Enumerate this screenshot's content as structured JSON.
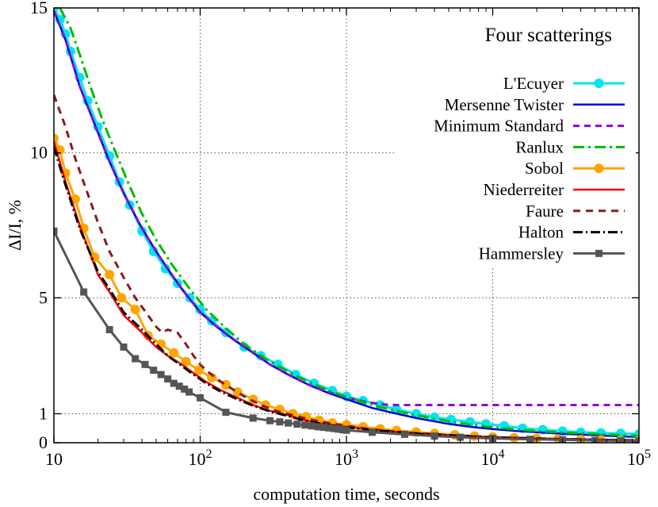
{
  "chart_data": {
    "type": "line",
    "title": "",
    "xlabel": "computation time, seconds",
    "ylabel": "ΔI/I, %",
    "x_scale": "log",
    "xlim": [
      10,
      100000
    ],
    "ylim": [
      0,
      15
    ],
    "x_ticks": [
      {
        "value": 10,
        "base": "10",
        "exp": ""
      },
      {
        "value": 100,
        "base": "10",
        "exp": "2"
      },
      {
        "value": 1000,
        "base": "10",
        "exp": "3"
      },
      {
        "value": 10000,
        "base": "10",
        "exp": "4"
      },
      {
        "value": 100000,
        "base": "10",
        "exp": "5"
      }
    ],
    "y_ticks": [
      0,
      1,
      5,
      10,
      15
    ],
    "grid": true,
    "legend_title": "Four scatterings",
    "legend_position": "top-right",
    "series": [
      {
        "name": "L'Ecuyer",
        "color": "#00e5ee",
        "dash": "",
        "width": 3,
        "marker": "circle",
        "x": [
          10,
          11,
          12,
          13,
          15,
          17,
          20,
          24,
          28,
          33,
          40,
          48,
          58,
          70,
          85,
          100,
          120,
          150,
          200,
          260,
          340,
          450,
          600,
          800,
          1000,
          1300,
          1700,
          2200,
          3000,
          4000,
          5200,
          7000,
          9000,
          12000,
          16000,
          22000,
          30000,
          40000,
          55000,
          75000,
          100000
        ],
        "y": [
          15.0,
          14.6,
          14.1,
          13.5,
          12.6,
          11.8,
          10.9,
          9.9,
          9.0,
          8.2,
          7.3,
          6.6,
          6.0,
          5.5,
          5.0,
          4.6,
          4.2,
          3.8,
          3.3,
          3.0,
          2.7,
          2.35,
          2.05,
          1.8,
          1.6,
          1.45,
          1.3,
          1.15,
          1.0,
          0.88,
          0.8,
          0.72,
          0.65,
          0.58,
          0.5,
          0.45,
          0.4,
          0.36,
          0.34,
          0.32,
          0.3
        ]
      },
      {
        "name": "Mersenne Twister",
        "color": "#0000dd",
        "dash": "",
        "width": 2.5,
        "marker": "",
        "x": [
          10,
          12,
          15,
          20,
          24,
          30,
          40,
          50,
          60,
          75,
          100,
          130,
          170,
          230,
          300,
          400,
          550,
          750,
          1000,
          1500,
          2000,
          3000,
          5000,
          7000,
          10000,
          15000,
          20000,
          30000,
          50000,
          75000,
          100000
        ],
        "y": [
          14.9,
          13.9,
          12.3,
          10.7,
          9.7,
          8.6,
          7.4,
          6.6,
          6.0,
          5.3,
          4.5,
          4.0,
          3.55,
          3.1,
          2.7,
          2.35,
          2.0,
          1.72,
          1.5,
          1.2,
          1.05,
          0.85,
          0.65,
          0.55,
          0.47,
          0.4,
          0.36,
          0.31,
          0.26,
          0.22,
          0.2
        ]
      },
      {
        "name": "Minimum Standard",
        "color": "#9400d3",
        "dash": "8 6",
        "width": 3,
        "marker": "",
        "x": [
          10,
          12,
          15,
          20,
          24,
          30,
          40,
          50,
          60,
          75,
          100,
          130,
          170,
          230,
          300,
          400,
          550,
          750,
          1000,
          1400,
          1800,
          2200,
          3000,
          5000,
          10000,
          20000,
          50000,
          100000
        ],
        "y": [
          14.9,
          13.9,
          12.3,
          10.7,
          9.7,
          8.6,
          7.4,
          6.6,
          6.0,
          5.3,
          4.5,
          4.0,
          3.55,
          3.1,
          2.7,
          2.35,
          2.0,
          1.75,
          1.55,
          1.4,
          1.32,
          1.3,
          1.3,
          1.3,
          1.3,
          1.3,
          1.3,
          1.3
        ]
      },
      {
        "name": "Ranlux",
        "color": "#00bb00",
        "dash": "14 5 3 5",
        "width": 3,
        "marker": "",
        "x": [
          11,
          13,
          15,
          18,
          22,
          26,
          32,
          40,
          50,
          65,
          85,
          110,
          150,
          200,
          280,
          400,
          550,
          800,
          1200,
          1800,
          2800,
          4000,
          6000,
          9000,
          14000,
          20000,
          30000,
          50000,
          75000,
          100000
        ],
        "y": [
          15.0,
          14.3,
          13.4,
          12.2,
          11.0,
          10.1,
          9.0,
          7.9,
          7.0,
          6.1,
          5.3,
          4.6,
          3.95,
          3.4,
          2.9,
          2.45,
          2.1,
          1.75,
          1.45,
          1.2,
          0.98,
          0.82,
          0.68,
          0.56,
          0.46,
          0.4,
          0.35,
          0.3,
          0.26,
          0.23
        ]
      },
      {
        "name": "Sobol",
        "color": "#ffa500",
        "dash": "",
        "width": 3,
        "marker": "circle",
        "x": [
          10,
          11,
          12,
          14,
          16,
          19,
          24,
          29,
          36,
          44,
          54,
          66,
          80,
          98,
          120,
          150,
          180,
          230,
          280,
          350,
          430,
          530,
          650,
          800,
          1000,
          1300,
          1700,
          2200,
          3000,
          4000,
          5500,
          7500,
          10000,
          14000,
          20000,
          28000,
          40000,
          55000,
          75000,
          100000
        ],
        "y": [
          10.5,
          10.1,
          9.3,
          8.4,
          7.4,
          6.4,
          5.8,
          5.0,
          4.6,
          3.7,
          3.4,
          3.1,
          2.8,
          2.5,
          2.25,
          2.0,
          1.75,
          1.5,
          1.3,
          1.15,
          1.0,
          0.9,
          0.78,
          0.68,
          0.62,
          0.55,
          0.48,
          0.42,
          0.37,
          0.32,
          0.27,
          0.23,
          0.2,
          0.17,
          0.15,
          0.13,
          0.11,
          0.1,
          0.09,
          0.08
        ]
      },
      {
        "name": "Niederreiter",
        "color": "#ff0000",
        "dash": "",
        "width": 2.5,
        "marker": "",
        "x": [
          10,
          12,
          15,
          20,
          24,
          30,
          40,
          50,
          60,
          75,
          90,
          110,
          140,
          180,
          230,
          300,
          400,
          500,
          700,
          1000,
          1500,
          2200,
          3500,
          5500,
          9000,
          15000,
          25000,
          40000,
          65000,
          100000
        ],
        "y": [
          10.4,
          9.0,
          7.5,
          5.8,
          5.2,
          4.4,
          3.8,
          3.3,
          3.0,
          2.7,
          2.4,
          2.1,
          1.8,
          1.55,
          1.3,
          1.1,
          0.95,
          0.8,
          0.65,
          0.55,
          0.45,
          0.38,
          0.3,
          0.25,
          0.2,
          0.17,
          0.14,
          0.12,
          0.1,
          0.08
        ]
      },
      {
        "name": "Faure",
        "color": "#8b1a1a",
        "dash": "9 7",
        "width": 3,
        "marker": "",
        "x": [
          10,
          12,
          14,
          17,
          20,
          24,
          30,
          36,
          44,
          50,
          55,
          60,
          70,
          80,
          90,
          100,
          110,
          130,
          160,
          200,
          260,
          330,
          430,
          560,
          750,
          1000,
          1400,
          2000,
          3000,
          4500,
          7000,
          10000,
          16000,
          25000,
          40000,
          65000,
          100000
        ],
        "y": [
          12.0,
          10.9,
          9.8,
          8.6,
          7.6,
          6.6,
          5.7,
          5.0,
          4.4,
          4.0,
          3.8,
          3.9,
          3.8,
          3.4,
          3.0,
          2.7,
          2.5,
          2.2,
          1.9,
          1.6,
          1.3,
          1.1,
          0.95,
          0.8,
          0.68,
          0.58,
          0.48,
          0.4,
          0.33,
          0.28,
          0.23,
          0.19,
          0.16,
          0.13,
          0.11,
          0.09,
          0.08
        ]
      },
      {
        "name": "Halton",
        "color": "#000000",
        "dash": "12 4 2 4",
        "width": 3,
        "marker": "",
        "x": [
          10,
          12,
          15,
          20,
          24,
          30,
          40,
          50,
          60,
          75,
          90,
          110,
          140,
          180,
          230,
          300,
          400,
          500,
          700,
          1000,
          1500,
          2200,
          3500,
          5500,
          9000,
          15000,
          25000,
          40000,
          65000,
          100000
        ],
        "y": [
          10.2,
          8.9,
          7.4,
          5.9,
          5.3,
          4.5,
          3.9,
          3.4,
          3.0,
          2.65,
          2.35,
          2.05,
          1.75,
          1.5,
          1.28,
          1.08,
          0.92,
          0.78,
          0.64,
          0.53,
          0.44,
          0.36,
          0.29,
          0.24,
          0.19,
          0.16,
          0.13,
          0.11,
          0.09,
          0.08
        ]
      },
      {
        "name": "Hammersley",
        "color": "#555555",
        "dash": "",
        "width": 3,
        "marker": "square",
        "x": [
          10,
          16,
          24,
          30,
          36,
          42,
          48,
          54,
          60,
          66,
          72,
          78,
          84,
          100,
          150,
          230,
          300,
          350,
          400,
          460,
          520,
          580,
          640,
          700,
          760,
          820,
          880,
          940,
          1000,
          1500,
          2500,
          4000,
          6000,
          10000,
          18000,
          30000,
          50000,
          75000,
          100000
        ],
        "y": [
          7.3,
          5.2,
          3.9,
          3.3,
          2.9,
          2.7,
          2.5,
          2.35,
          2.2,
          2.05,
          1.95,
          1.85,
          1.75,
          1.55,
          1.05,
          0.85,
          0.76,
          0.72,
          0.68,
          0.64,
          0.61,
          0.58,
          0.55,
          0.53,
          0.51,
          0.49,
          0.47,
          0.45,
          0.43,
          0.36,
          0.29,
          0.23,
          0.19,
          0.15,
          0.12,
          0.1,
          0.08,
          0.07,
          0.06
        ]
      }
    ]
  }
}
